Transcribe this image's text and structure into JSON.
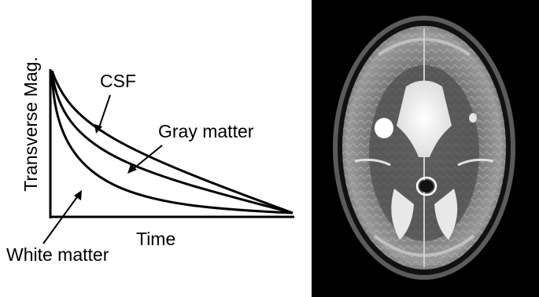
{
  "figure": {
    "y_axis_label": "Transverse Mag.",
    "x_axis_label": "Time",
    "curve_labels": {
      "csf": "CSF",
      "gray_matter": "Gray matter",
      "white_matter": "White matter"
    }
  },
  "chart_data": {
    "type": "line",
    "xlabel": "Time",
    "ylabel": "Transverse Mag.",
    "series": [
      {
        "name": "CSF",
        "decay": "slowest"
      },
      {
        "name": "Gray matter",
        "decay": "intermediate"
      },
      {
        "name": "White matter",
        "decay": "fastest"
      }
    ]
  },
  "image": {
    "description_type": "axial T2-weighted brain MRI",
    "background_color": "#000000"
  }
}
